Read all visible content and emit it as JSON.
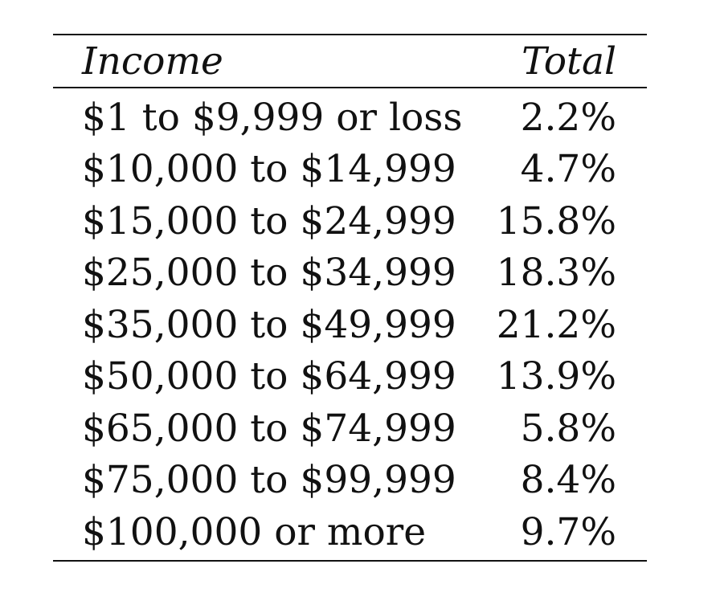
{
  "table": {
    "header": {
      "col1": "Income",
      "col2": "Total"
    },
    "rows": [
      {
        "income": "$1 to $9,999 or loss",
        "total": "2.2%"
      },
      {
        "income": "$10,000 to $14,999",
        "total": "4.7%"
      },
      {
        "income": "$15,000 to $24,999",
        "total": "15.8%"
      },
      {
        "income": "$25,000 to $34,999",
        "total": "18.3%"
      },
      {
        "income": "$35,000 to $49,999",
        "total": "21.2%"
      },
      {
        "income": "$50,000 to $64,999",
        "total": "13.9%"
      },
      {
        "income": "$65,000 to $74,999",
        "total": "5.8%"
      },
      {
        "income": "$75,000 to $99,999",
        "total": "8.4%"
      },
      {
        "income": "$100,000 or more",
        "total": "9.7%"
      }
    ]
  }
}
